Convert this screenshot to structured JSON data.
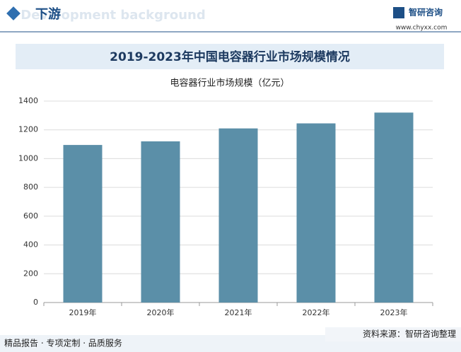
{
  "header": {
    "title": "下游",
    "bg_text": "Development background"
  },
  "logo": {
    "name": "智研咨询",
    "url": "www.chyxx.com"
  },
  "chart_data": {
    "type": "bar",
    "title": "2019-2023年中国电容器行业市场规模情况",
    "subtitle": "电容器行业市场规模（亿元）",
    "categories": [
      "2019年",
      "2020年",
      "2021年",
      "2022年",
      "2023年"
    ],
    "values": [
      1095,
      1120,
      1210,
      1245,
      1320
    ],
    "color": "#5b8fa8",
    "ylim": [
      0,
      1400
    ],
    "yticks": [
      0,
      200,
      400,
      600,
      800,
      1000,
      1200,
      1400
    ],
    "grid": true
  },
  "footer": {
    "left": "精品报告 · 专项定制 · 品质服务",
    "source": "资料来源：智研咨询整理"
  }
}
